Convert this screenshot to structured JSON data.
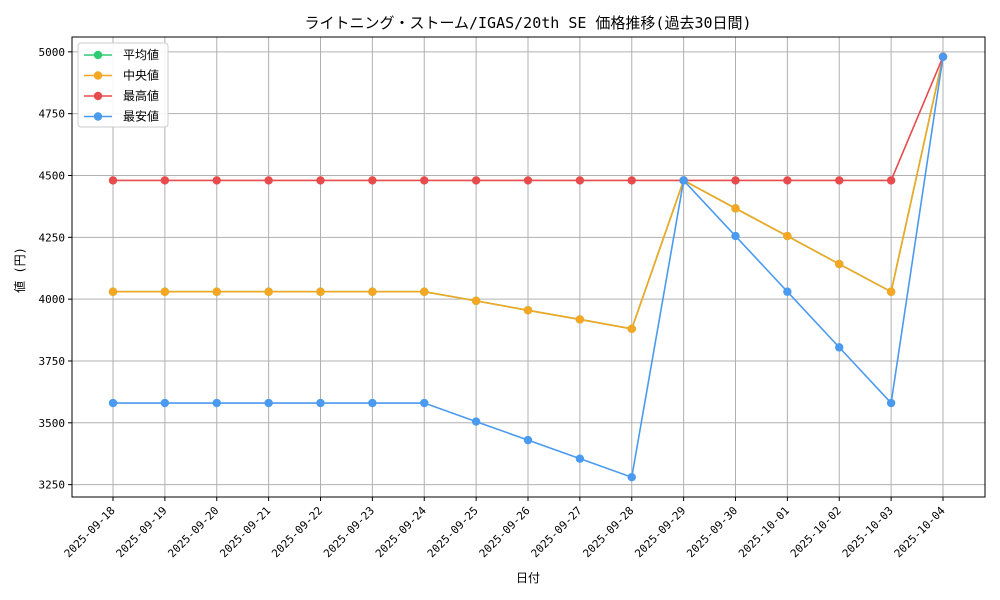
{
  "chart_data": {
    "type": "line",
    "title": "ライトニング・ストーム/IGAS/20th SE 価格推移(過去30日間)",
    "xlabel": "日付",
    "ylabel": "値 (円)",
    "categories": [
      "2025-09-18",
      "2025-09-19",
      "2025-09-20",
      "2025-09-21",
      "2025-09-22",
      "2025-09-23",
      "2025-09-24",
      "2025-09-25",
      "2025-09-26",
      "2025-09-27",
      "2025-09-28",
      "2025-09-29",
      "2025-09-30",
      "2025-10-01",
      "2025-10-02",
      "2025-10-03",
      "2025-10-04"
    ],
    "ylim": [
      3200,
      5060
    ],
    "yticks": [
      3250,
      3500,
      3750,
      4000,
      4250,
      4500,
      4750,
      5000
    ],
    "grid": true,
    "legend_position": "top-left",
    "series": [
      {
        "name": "平均値",
        "color": "#2ecc71",
        "values": [
          4030,
          4030,
          4030,
          4030,
          4030,
          4030,
          4030,
          3993,
          3955,
          3918,
          3880,
          4480,
          4367,
          4255,
          4142,
          4030,
          4980
        ]
      },
      {
        "name": "中央値",
        "color": "#f5a623",
        "values": [
          4030,
          4030,
          4030,
          4030,
          4030,
          4030,
          4030,
          3993,
          3955,
          3918,
          3880,
          4480,
          4367,
          4255,
          4142,
          4030,
          4980
        ]
      },
      {
        "name": "最高値",
        "color": "#e84b4b",
        "values": [
          4480,
          4480,
          4480,
          4480,
          4480,
          4480,
          4480,
          4480,
          4480,
          4480,
          4480,
          4480,
          4480,
          4480,
          4480,
          4480,
          4980
        ]
      },
      {
        "name": "最安値",
        "color": "#4a9af0",
        "values": [
          3580,
          3580,
          3580,
          3580,
          3580,
          3580,
          3580,
          3505,
          3430,
          3355,
          3280,
          4480,
          4255,
          4030,
          3805,
          3580,
          4980
        ]
      }
    ]
  }
}
